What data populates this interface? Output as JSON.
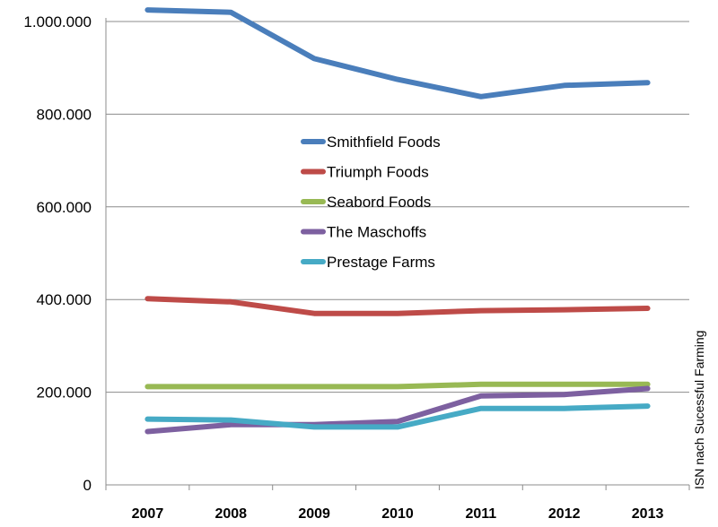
{
  "chart_data": {
    "type": "line",
    "x": [
      "2007",
      "2008",
      "2009",
      "2010",
      "2011",
      "2012",
      "2013"
    ],
    "ylim": [
      0,
      1000000
    ],
    "y_ticks": [
      "0",
      "200.000",
      "400.000",
      "600.000",
      "800.000",
      "1.000.000"
    ],
    "y_tick_values": [
      0,
      200000,
      400000,
      600000,
      800000,
      1000000
    ],
    "grid": true,
    "legend_position": "center",
    "series": [
      {
        "name": "Smithfield Foods",
        "color": "#4a7ebb",
        "values": [
          1025000,
          1020000,
          920000,
          875000,
          838000,
          862000,
          868000
        ]
      },
      {
        "name": "Triumph Foods",
        "color": "#be4b48",
        "values": [
          402000,
          395000,
          370000,
          370000,
          376000,
          378000,
          381000
        ]
      },
      {
        "name": "Seabord Foods",
        "color": "#98b954",
        "values": [
          212000,
          212000,
          212000,
          212000,
          217000,
          217000,
          217000
        ]
      },
      {
        "name": "The Maschoffs",
        "color": "#7d60a0",
        "values": [
          115000,
          130000,
          130000,
          137000,
          192000,
          195000,
          208000
        ]
      },
      {
        "name": "Prestage Farms",
        "color": "#46aac5",
        "values": [
          142000,
          140000,
          125000,
          125000,
          165000,
          165000,
          170000
        ]
      }
    ],
    "source_note": "ISN nach Sucessful Farming"
  }
}
